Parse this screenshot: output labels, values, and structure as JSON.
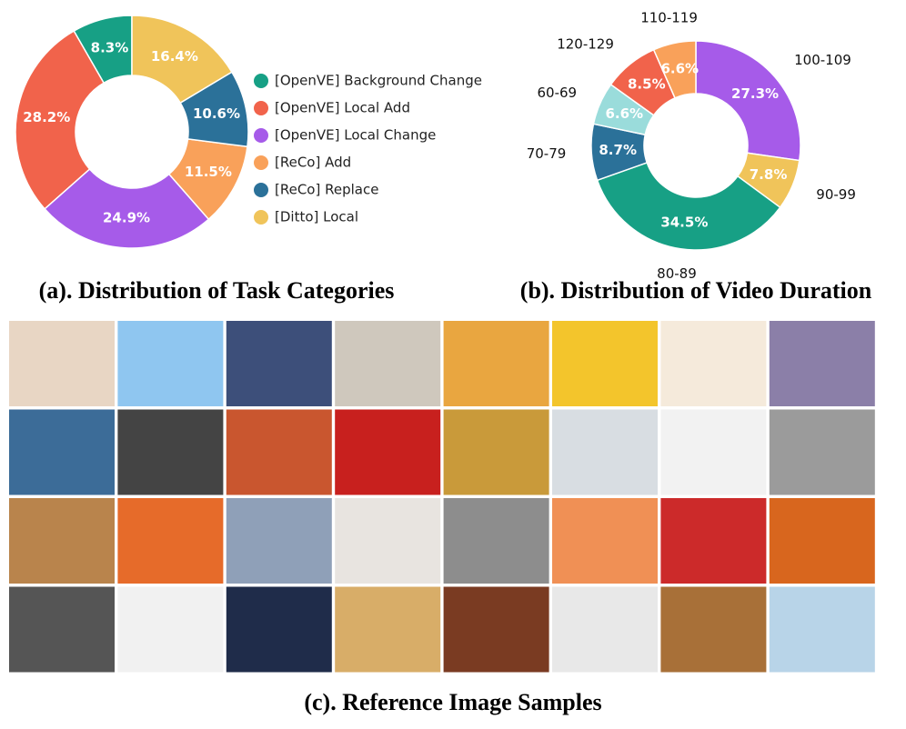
{
  "chart_data": [
    {
      "type": "donut",
      "title": "(a). Distribution of Task Categories",
      "direction": "counterclockwise",
      "series": [
        {
          "name": "[OpenVE] Background Change",
          "color": "#17a085",
          "values": [
            8.3
          ],
          "value_labels": [
            "8.3%"
          ]
        },
        {
          "name": "[OpenVE] Local Add",
          "color": "#f1634b",
          "values": [
            28.2
          ],
          "value_labels": [
            "28.2%"
          ]
        },
        {
          "name": "[OpenVE] Local Change",
          "color": "#a65be9",
          "values": [
            24.9
          ],
          "value_labels": [
            "24.9%"
          ]
        },
        {
          "name": "[ReCo] Add",
          "color": "#f9a15a",
          "values": [
            11.5
          ],
          "value_labels": [
            "11.5%"
          ]
        },
        {
          "name": "[ReCo] Replace",
          "color": "#2b7199",
          "values": [
            10.6
          ],
          "value_labels": [
            "10.6%"
          ]
        },
        {
          "name": "[Ditto] Local",
          "color": "#f0c45a",
          "values": [
            16.4
          ],
          "value_labels": [
            "16.4%"
          ]
        }
      ],
      "legend": "right"
    },
    {
      "type": "donut",
      "title": "(b). Distribution of Video Duration",
      "direction": "clockwise",
      "categories": [
        "100-109",
        "90-99",
        "80-89",
        "70-79",
        "60-69",
        "120-129",
        "110-119"
      ],
      "values": [
        27.3,
        7.8,
        34.5,
        8.7,
        6.6,
        8.5,
        6.6
      ],
      "value_labels": [
        "27.3%",
        "7.8%",
        "34.5%",
        "8.7%",
        "6.6%",
        "8.5%",
        "6.6%"
      ],
      "colors": [
        "#a65be9",
        "#f0c45a",
        "#17a085",
        "#2b7199",
        "#9adcdb",
        "#f1634b",
        "#f9a15a"
      ]
    }
  ],
  "figure": {
    "caption": "(c). Reference Image Samples"
  }
}
